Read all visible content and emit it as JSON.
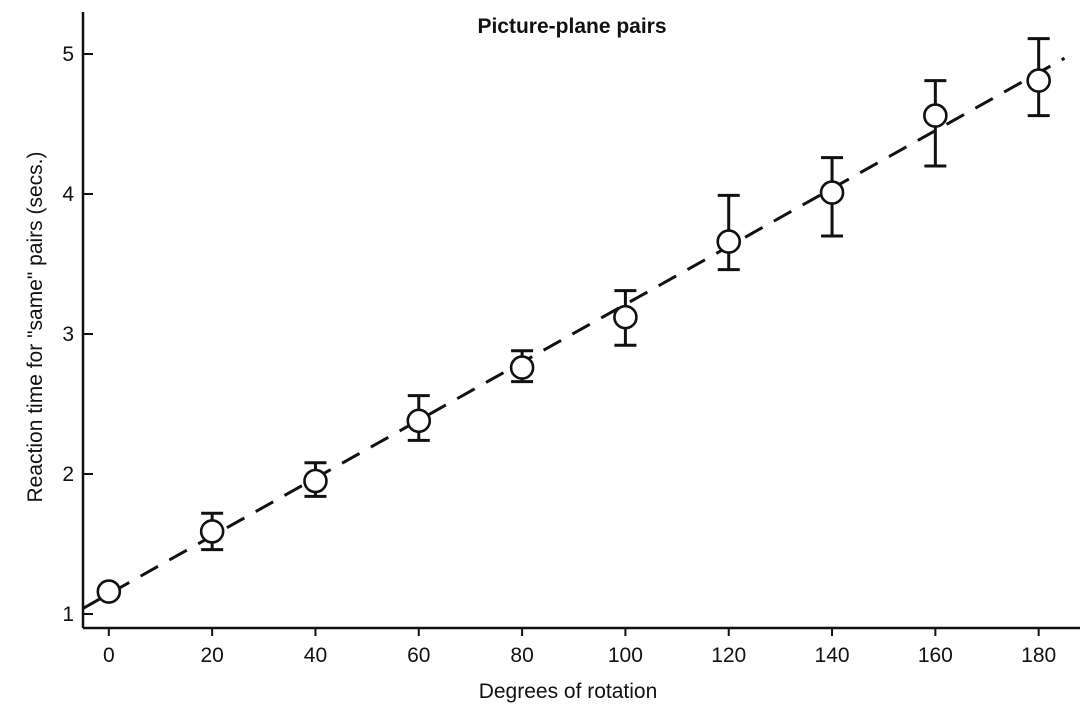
{
  "chart_data": {
    "type": "scatter",
    "title": "Picture-plane pairs",
    "xlabel": "Degrees of rotation",
    "ylabel": "Reaction time for \"same\" pairs (secs.)",
    "xlim": [
      -5,
      188
    ],
    "ylim": [
      0.9,
      5.3
    ],
    "x_ticks": [
      0,
      20,
      40,
      60,
      80,
      100,
      120,
      140,
      160,
      180
    ],
    "y_ticks": [
      1,
      2,
      3,
      4,
      5
    ],
    "grid": false,
    "legend": "none",
    "series": [
      {
        "marker": "open-circle",
        "x": [
          0,
          20,
          40,
          60,
          80,
          100,
          120,
          140,
          160,
          180
        ],
        "y": [
          1.16,
          1.59,
          1.95,
          2.38,
          2.76,
          3.12,
          3.66,
          4.01,
          4.56,
          4.81
        ],
        "error_low": [
          1.16,
          1.46,
          1.84,
          2.24,
          2.66,
          2.92,
          3.46,
          3.7,
          4.2,
          4.56
        ],
        "error_high": [
          1.16,
          1.72,
          2.08,
          2.56,
          2.88,
          3.31,
          3.99,
          4.26,
          4.81,
          5.11
        ]
      }
    ],
    "fit_line": {
      "style": "dashed",
      "x": [
        -5,
        185
      ],
      "y": [
        1.04,
        4.97
      ]
    },
    "colors": {
      "marks": "#111111",
      "background": "#ffffff"
    }
  }
}
